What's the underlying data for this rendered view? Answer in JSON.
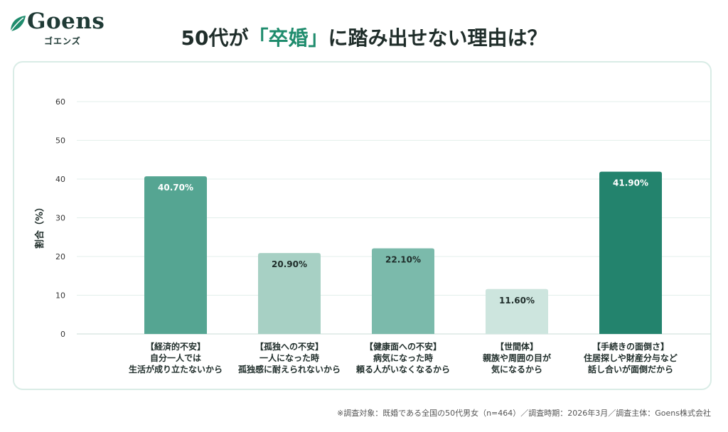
{
  "brand": {
    "name": "Goens",
    "kana": "ゴエンズ"
  },
  "title": {
    "prefix": "50代が",
    "highlight": "「卒婚」",
    "suffix": "に踏み出せない理由は？"
  },
  "colors": {
    "accent": "#1f8c6d",
    "bar_dark": "#23836d",
    "bar_mid": "#55a592",
    "bar_light": "#a7d0c4"
  },
  "chart_data": {
    "type": "bar",
    "ylabel": "割合（%）",
    "ylim": [
      0,
      60
    ],
    "yticks": [
      "0",
      "10",
      "20",
      "30",
      "40",
      "50",
      "60"
    ],
    "grid": true,
    "categories": [
      [
        "【経済的不安】",
        "自分一人では",
        "生活が成り立たないから"
      ],
      [
        "【孤独への不安】",
        "一人になった時",
        "孤独感に耐えられないから"
      ],
      [
        "【健康面への不安】",
        "病気になった時",
        "頼る人がいなくなるから"
      ],
      [
        "【世間体】",
        "親族や周囲の目が",
        "気になるから"
      ],
      [
        "【手続きの面倒さ】",
        "住居探しや財産分与など",
        "話し合いが面倒だから"
      ]
    ],
    "values": [
      40.7,
      20.9,
      22.1,
      11.6,
      41.9
    ],
    "labels": [
      "40.70%",
      "20.90%",
      "22.10%",
      "11.60%",
      "41.90%"
    ],
    "bar_colors": [
      "#55a592",
      "#a7d0c4",
      "#7bbaab",
      "#cde5de",
      "#23836d"
    ],
    "label_colors": [
      "#ffffff",
      "#1f2d2a",
      "#1f2d2a",
      "#1f2d2a",
      "#ffffff"
    ]
  },
  "footnote": "※調査対象：既婚である全国の50代男女（n=464）／調査時期：2026年3月／調査主体：Goens株式会社"
}
